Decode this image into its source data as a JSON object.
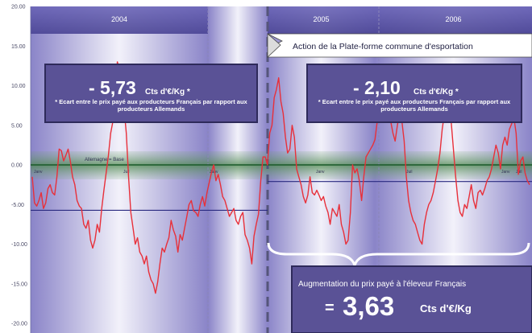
{
  "chart_data": {
    "type": "line",
    "ylim": [
      -20,
      20
    ],
    "y_ticks": [
      "20.00",
      "15.00",
      "10.00",
      "5.00",
      "0.00",
      "-5.00",
      "-10.00",
      "-15.00",
      "-20.00"
    ],
    "y_tick_values": [
      20,
      15,
      10,
      5,
      0,
      -5,
      -10,
      -15,
      -20
    ],
    "periods": [
      "2004",
      "2005",
      "2006"
    ],
    "band_label": "Allemagne = Base",
    "month_labels": [
      "Janv",
      "Juil",
      "Janv",
      "Janv",
      "Juil",
      "Janv",
      "Juil"
    ],
    "series": [
      {
        "color": "#e8303a",
        "values": [
          -1.5,
          -4.8,
          -5.2,
          -4.5,
          -3.5,
          -5.5,
          -4.8,
          -3,
          -2.5,
          -3.5,
          -3.8,
          -1.5,
          2,
          1.8,
          0.5,
          1.2,
          2,
          0.5,
          -1.5,
          -2.5,
          -4.5,
          -5.2,
          -5.5,
          -7.5,
          -8,
          -7,
          -9.5,
          -10.5,
          -9.5,
          -7.5,
          -8.5,
          -5.5,
          -3.2,
          -1,
          1.2,
          4,
          5.5,
          9.5,
          13,
          12,
          10.5,
          7,
          4,
          -1.5,
          -6,
          -8,
          -10,
          -9.2,
          -11,
          -11.5,
          -12.5,
          -11.5,
          -13.5,
          -14.5,
          -15,
          -16.2,
          -14.8,
          -12.5,
          -10.5,
          -11,
          -10,
          -9.2,
          -7,
          -8.2,
          -9,
          -11,
          -8.8,
          -9.5,
          -8,
          -6.5,
          -5,
          -4.5,
          -5.8,
          -6,
          -6.5,
          -5,
          -4,
          -5.2,
          -3.5,
          -2.2,
          -1,
          0,
          -2,
          -1.2,
          -2.5,
          -4,
          -4.5,
          -5.5,
          -6.5,
          -6,
          -5.5,
          -7,
          -7.5,
          -6.5,
          -6,
          -8.8,
          -9.5,
          -10.5,
          -12.5,
          -9,
          -7.5,
          -6.2,
          -2,
          1,
          1,
          0,
          4,
          5,
          8.5,
          9.5,
          11,
          8,
          6.5,
          3.5,
          1.5,
          2,
          5,
          3.5,
          -0.5,
          -1.5,
          -2.5,
          -4,
          -4.8,
          -3.8,
          -1.5,
          -3.5,
          -3.8,
          -3.2,
          -3.8,
          -4.5,
          -4,
          -5.2,
          -6,
          -7.5,
          -5.5,
          -6,
          -6.5,
          -5,
          -7.5,
          -8.5,
          -10,
          -9.5,
          -6,
          0,
          -1,
          -0.5,
          -2,
          -4.5,
          -1.5,
          1,
          1.5,
          2,
          2.5,
          3.2,
          5.5,
          7.5,
          11.5,
          10,
          9,
          7.5,
          5.5,
          4,
          3,
          5,
          6.5,
          5.5,
          3,
          -1.5,
          -4.5,
          -6,
          -7,
          -7.5,
          -8.5,
          -9.5,
          -10,
          -7.5,
          -6,
          -5,
          -4.5,
          -3.5,
          -2,
          -0.5,
          1.5,
          4.5,
          6.5,
          10,
          8,
          5.5,
          2,
          -1.5,
          -4.5,
          -6,
          -6.5,
          -5,
          -5.5,
          -4,
          -2.5,
          -4.5,
          -5.5,
          -3.5,
          -3.2,
          -3.8,
          -3,
          -2,
          -1.5,
          -0.5,
          1,
          2.5,
          1.5,
          -0.5,
          2.5,
          3.5,
          2.5,
          4.5,
          5.2,
          6,
          4,
          -1.2,
          0.5,
          1,
          -1,
          -2,
          -2.5
        ]
      }
    ],
    "reference_lines": [
      {
        "value": 0,
        "color": "#1a5a2a"
      },
      {
        "from_period": 0,
        "to_period": 1,
        "value": -5.73,
        "color": "#2a2a80"
      },
      {
        "from_period": 1,
        "to_period": 3,
        "value": -2.1,
        "color": "#2a2a80"
      }
    ],
    "box1": {
      "value": "- 5,73",
      "unit": "Cts d'€/Kg *",
      "note": "* Ecart entre le prix payé aux producteurs Français par rapport aux producteurs Allemands"
    },
    "box2": {
      "value": "- 2,10",
      "unit": "Cts d'€/Kg *",
      "note": "* Ecart entre le prix payé aux producteurs Français par rapport aux producteurs Allemands"
    },
    "action_label": "Action de la Plate-forme commune d'esportation",
    "augmentation": {
      "label": "Augmentation du prix payé à l'éleveur Français",
      "prefix": "=",
      "value": "3,63",
      "unit": "Cts d'€/Kg"
    }
  }
}
